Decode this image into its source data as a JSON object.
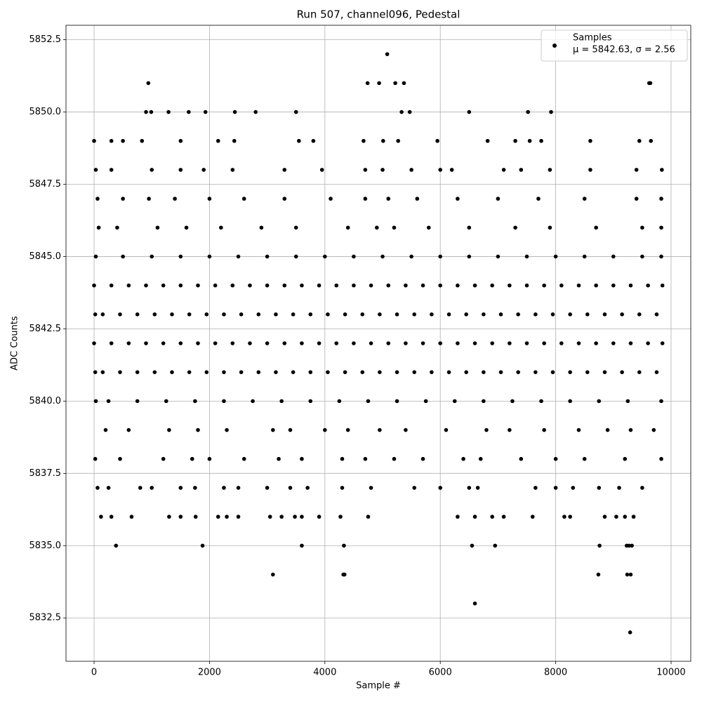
{
  "chart_data": {
    "type": "scatter",
    "title": "Run 507, channel096, Pedestal",
    "x_label": "Sample #",
    "y_label": "ADC Counts",
    "legend_note": "μ = 5842.63, σ = 2.56",
    "legend_position": "upper right",
    "grid": true,
    "xlim": [
      -487,
      10341
    ],
    "ylim": [
      5831.0,
      5853.0
    ],
    "xticks": [
      0,
      2000,
      4000,
      6000,
      8000,
      10000
    ],
    "yticks": [
      5832.5,
      {
        "value": 5835,
        "label": "5835.0"
      },
      5837.5,
      {
        "value": 5840,
        "label": "5840.0"
      },
      5842.5,
      {
        "value": 5845,
        "label": "5845.0"
      },
      5847.5,
      {
        "value": 5850,
        "label": "5850.0"
      },
      5852.5
    ],
    "x": [
      5080,
      940,
      4740,
      4940,
      5220,
      5370,
      9620,
      9640,
      3100,
      4320,
      4340,
      8740,
      9240,
      9300,
      6600,
      9290,
      380,
      1880,
      3600,
      4330,
      6550,
      6950,
      8760,
      9230,
      9270,
      9320,
      0,
      300,
      600,
      900,
      1200,
      1500,
      1800,
      2100,
      2400,
      2700,
      3000,
      3300,
      3600,
      3900,
      4200,
      4500,
      4800,
      5100,
      5400,
      5700,
      6000,
      6300,
      6600,
      6900,
      7200,
      7500,
      7800,
      8100,
      8400,
      8700,
      9000,
      9300,
      9600,
      9850,
      20,
      150,
      450,
      750,
      1050,
      1350,
      1650,
      1950,
      2250,
      2550,
      2850,
      3150,
      3450,
      3750,
      4050,
      4350,
      4650,
      4950,
      5250,
      5550,
      5850,
      6150,
      6450,
      6750,
      7050,
      7350,
      7650,
      7950,
      8250,
      8550,
      8850,
      9150,
      9450,
      9750,
      0,
      300,
      600,
      900,
      1200,
      1500,
      1800,
      2100,
      2400,
      2700,
      3000,
      3300,
      3600,
      3900,
      4200,
      4500,
      4800,
      5100,
      5400,
      5700,
      6000,
      6300,
      6600,
      6900,
      7200,
      7500,
      7800,
      8100,
      8400,
      8700,
      9000,
      9300,
      9600,
      9850,
      20,
      150,
      450,
      750,
      1050,
      1350,
      1650,
      1950,
      2250,
      2550,
      2850,
      3150,
      3450,
      3750,
      4050,
      4350,
      4650,
      4950,
      5250,
      5550,
      5850,
      6150,
      6450,
      6750,
      7050,
      7350,
      7650,
      7950,
      8250,
      8550,
      8850,
      9150,
      9450,
      9750,
      30,
      500,
      1000,
      1500,
      2000,
      2500,
      3000,
      3500,
      4000,
      4500,
      5000,
      5500,
      6000,
      6500,
      7000,
      7500,
      8000,
      8500,
      9000,
      9500,
      9830,
      30,
      250,
      750,
      1250,
      1750,
      2250,
      2750,
      3250,
      3750,
      4250,
      4750,
      5250,
      5750,
      6250,
      6750,
      7250,
      7750,
      8250,
      8750,
      9250,
      9830,
      80,
      400,
      1100,
      1600,
      2200,
      2900,
      3500,
      4400,
      4900,
      5200,
      5800,
      6500,
      7300,
      7900,
      8700,
      9500,
      9830,
      20,
      450,
      1200,
      1700,
      2000,
      2600,
      3200,
      3600,
      4300,
      4700,
      5200,
      5700,
      6400,
      6700,
      7400,
      8000,
      8500,
      9200,
      9830,
      200,
      600,
      1300,
      1800,
      2300,
      3100,
      3400,
      4000,
      4400,
      4950,
      5400,
      6100,
      6800,
      7200,
      7800,
      8400,
      8900,
      9300,
      9700,
      60,
      500,
      950,
      1400,
      2000,
      2600,
      3300,
      4100,
      4700,
      5100,
      5600,
      6300,
      7000,
      7700,
      8500,
      9400,
      9830,
      30,
      300,
      1000,
      1500,
      1900,
      2400,
      3300,
      3950,
      4700,
      5000,
      5500,
      6000,
      6200,
      7100,
      7400,
      7900,
      8600,
      9400,
      9840,
      60,
      250,
      800,
      1000,
      1500,
      1750,
      2250,
      2500,
      3000,
      3400,
      3700,
      4300,
      4800,
      5550,
      6000,
      6500,
      6650,
      7650,
      8000,
      8300,
      8750,
      9100,
      9500,
      120,
      300,
      650,
      1300,
      1500,
      1760,
      2150,
      2300,
      2500,
      3050,
      3250,
      3480,
      3600,
      3900,
      4270,
      4750,
      6300,
      6600,
      6900,
      7100,
      7600,
      8150,
      8250,
      8850,
      9050,
      9200,
      9350,
      0,
      300,
      500,
      830,
      1500,
      2150,
      2430,
      3550,
      3800,
      4670,
      5010,
      5270,
      5950,
      6820,
      7300,
      7550,
      7750,
      8600,
      9450,
      9650,
      900,
      990,
      1290,
      1640,
      1930,
      2440,
      2800,
      3500,
      5330,
      5470,
      6500,
      7520,
      7920
    ],
    "series": [
      {
        "name": "Samples",
        "color": "#000000",
        "values": [
          5852,
          5851,
          5851,
          5851,
          5851,
          5851,
          5851,
          5851,
          5834,
          5834,
          5834,
          5834,
          5834,
          5834,
          5833,
          5832,
          5835,
          5835,
          5835,
          5835,
          5835,
          5835,
          5835,
          5835,
          5835,
          5835,
          5844,
          5844,
          5844,
          5844,
          5844,
          5844,
          5844,
          5844,
          5844,
          5844,
          5844,
          5844,
          5844,
          5844,
          5844,
          5844,
          5844,
          5844,
          5844,
          5844,
          5844,
          5844,
          5844,
          5844,
          5844,
          5844,
          5844,
          5844,
          5844,
          5844,
          5844,
          5844,
          5844,
          5844,
          5843,
          5843,
          5843,
          5843,
          5843,
          5843,
          5843,
          5843,
          5843,
          5843,
          5843,
          5843,
          5843,
          5843,
          5843,
          5843,
          5843,
          5843,
          5843,
          5843,
          5843,
          5843,
          5843,
          5843,
          5843,
          5843,
          5843,
          5843,
          5843,
          5843,
          5843,
          5843,
          5843,
          5843,
          5842,
          5842,
          5842,
          5842,
          5842,
          5842,
          5842,
          5842,
          5842,
          5842,
          5842,
          5842,
          5842,
          5842,
          5842,
          5842,
          5842,
          5842,
          5842,
          5842,
          5842,
          5842,
          5842,
          5842,
          5842,
          5842,
          5842,
          5842,
          5842,
          5842,
          5842,
          5842,
          5842,
          5842,
          5841,
          5841,
          5841,
          5841,
          5841,
          5841,
          5841,
          5841,
          5841,
          5841,
          5841,
          5841,
          5841,
          5841,
          5841,
          5841,
          5841,
          5841,
          5841,
          5841,
          5841,
          5841,
          5841,
          5841,
          5841,
          5841,
          5841,
          5841,
          5841,
          5841,
          5841,
          5841,
          5841,
          5841,
          5845,
          5845,
          5845,
          5845,
          5845,
          5845,
          5845,
          5845,
          5845,
          5845,
          5845,
          5845,
          5845,
          5845,
          5845,
          5845,
          5845,
          5845,
          5845,
          5845,
          5845,
          5840,
          5840,
          5840,
          5840,
          5840,
          5840,
          5840,
          5840,
          5840,
          5840,
          5840,
          5840,
          5840,
          5840,
          5840,
          5840,
          5840,
          5840,
          5840,
          5840,
          5840,
          5846,
          5846,
          5846,
          5846,
          5846,
          5846,
          5846,
          5846,
          5846,
          5846,
          5846,
          5846,
          5846,
          5846,
          5846,
          5846,
          5846,
          5838,
          5838,
          5838,
          5838,
          5838,
          5838,
          5838,
          5838,
          5838,
          5838,
          5838,
          5838,
          5838,
          5838,
          5838,
          5838,
          5838,
          5838,
          5838,
          5839,
          5839,
          5839,
          5839,
          5839,
          5839,
          5839,
          5839,
          5839,
          5839,
          5839,
          5839,
          5839,
          5839,
          5839,
          5839,
          5839,
          5839,
          5839,
          5847,
          5847,
          5847,
          5847,
          5847,
          5847,
          5847,
          5847,
          5847,
          5847,
          5847,
          5847,
          5847,
          5847,
          5847,
          5847,
          5847,
          5848,
          5848,
          5848,
          5848,
          5848,
          5848,
          5848,
          5848,
          5848,
          5848,
          5848,
          5848,
          5848,
          5848,
          5848,
          5848,
          5848,
          5848,
          5848,
          5837,
          5837,
          5837,
          5837,
          5837,
          5837,
          5837,
          5837,
          5837,
          5837,
          5837,
          5837,
          5837,
          5837,
          5837,
          5837,
          5837,
          5837,
          5837,
          5837,
          5837,
          5837,
          5837,
          5836,
          5836,
          5836,
          5836,
          5836,
          5836,
          5836,
          5836,
          5836,
          5836,
          5836,
          5836,
          5836,
          5836,
          5836,
          5836,
          5836,
          5836,
          5836,
          5836,
          5836,
          5836,
          5836,
          5836,
          5836,
          5836,
          5836,
          5849,
          5849,
          5849,
          5849,
          5849,
          5849,
          5849,
          5849,
          5849,
          5849,
          5849,
          5849,
          5849,
          5849,
          5849,
          5849,
          5849,
          5849,
          5849,
          5849,
          5850,
          5850,
          5850,
          5850,
          5850,
          5850,
          5850,
          5850,
          5850,
          5850,
          5850,
          5850,
          5850
        ]
      }
    ]
  }
}
